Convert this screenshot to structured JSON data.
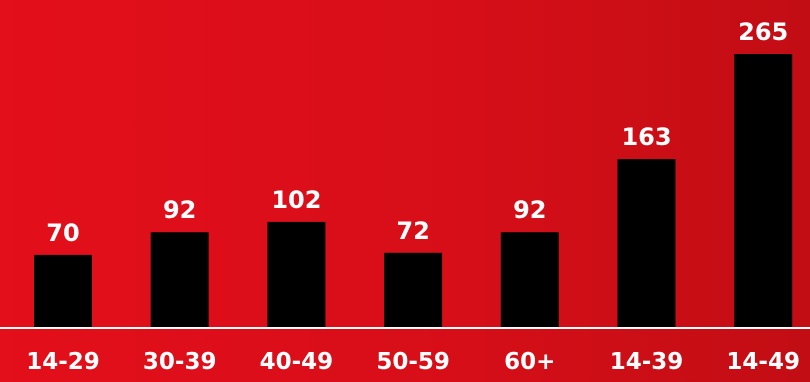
{
  "chart_data": {
    "type": "bar",
    "categories": [
      "14-29",
      "30-39",
      "40-49",
      "50-59",
      "60+",
      "14-39",
      "14-49"
    ],
    "values": [
      70,
      92,
      102,
      72,
      92,
      163,
      265
    ],
    "title": "",
    "xlabel": "",
    "ylabel": "",
    "ylim": [
      0,
      265
    ],
    "grid": false,
    "legend": "none"
  },
  "colors": {
    "background": "#d70e18",
    "bar": "#000000",
    "text": "#ffffff",
    "baseline": "#ffffff"
  }
}
